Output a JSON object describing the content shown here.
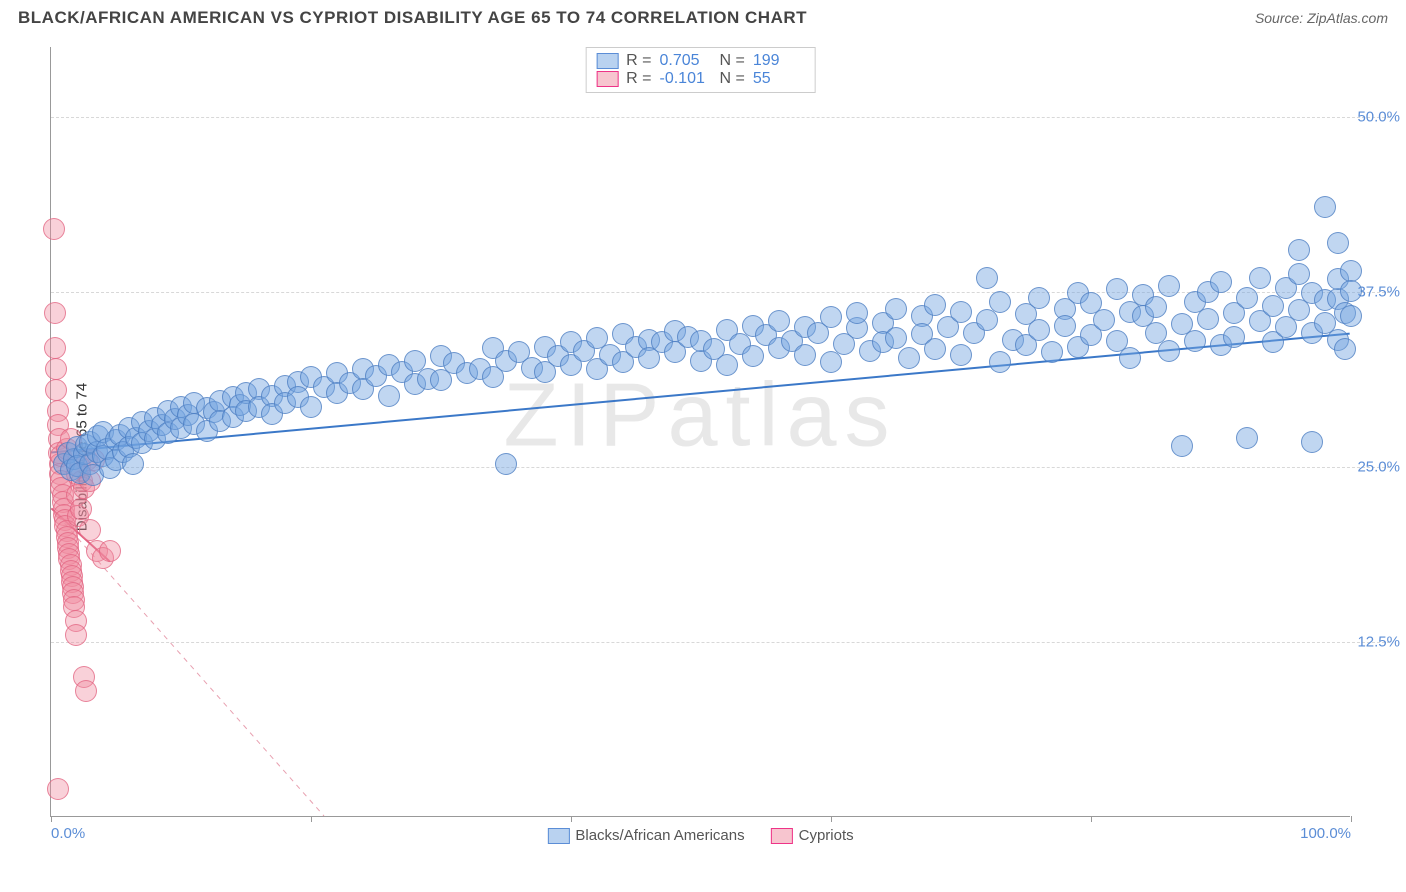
{
  "title": "BLACK/AFRICAN AMERICAN VS CYPRIOT DISABILITY AGE 65 TO 74 CORRELATION CHART",
  "source": "Source: ZipAtlas.com",
  "watermark": "ZIPatlas",
  "ylabel": "Disability Age 65 to 74",
  "chart": {
    "type": "scatter",
    "background_color": "#ffffff",
    "grid_color": "#d8d8d8",
    "axis_color": "#999999",
    "xlim": [
      0,
      100
    ],
    "ylim": [
      0,
      55
    ],
    "yticks": [
      {
        "value": 12.5,
        "label": "12.5%"
      },
      {
        "value": 25.0,
        "label": "25.0%"
      },
      {
        "value": 37.5,
        "label": "37.5%"
      },
      {
        "value": 50.0,
        "label": "50.0%"
      }
    ],
    "xticks": [
      0,
      20,
      40,
      60,
      80,
      100
    ],
    "xlabels": [
      {
        "value": 0,
        "label": "0.0%"
      },
      {
        "value": 100,
        "label": "100.0%"
      }
    ],
    "point_radius": 11,
    "series": {
      "blue": {
        "label": "Blacks/African Americans",
        "color_fill": "rgba(115,165,225,0.45)",
        "color_stroke": "#5b8dd6",
        "R": "0.705",
        "N": "199",
        "trend": {
          "x1": 0,
          "y1": 26,
          "x2": 100,
          "y2": 34.5,
          "dashed": false,
          "color": "#3b78c8",
          "width": 2
        },
        "points": [
          [
            1,
            25.2
          ],
          [
            1.3,
            26
          ],
          [
            1.5,
            24.8
          ],
          [
            1.8,
            25.6
          ],
          [
            2,
            26.4
          ],
          [
            2,
            25.1
          ],
          [
            2.2,
            24.6
          ],
          [
            2.5,
            25.9
          ],
          [
            2.7,
            26.6
          ],
          [
            3,
            25.2
          ],
          [
            3,
            26.8
          ],
          [
            3.2,
            24.4
          ],
          [
            3.5,
            26.1
          ],
          [
            3.6,
            27.2
          ],
          [
            4,
            25.8
          ],
          [
            4,
            27.5
          ],
          [
            4.3,
            26.3
          ],
          [
            4.5,
            24.9
          ],
          [
            5,
            26.9
          ],
          [
            5,
            25.5
          ],
          [
            5.3,
            27.3
          ],
          [
            5.5,
            26.1
          ],
          [
            6,
            27.8
          ],
          [
            6,
            26.4
          ],
          [
            6.3,
            25.2
          ],
          [
            6.5,
            27.1
          ],
          [
            7,
            28.2
          ],
          [
            7,
            26.7
          ],
          [
            7.5,
            27.6
          ],
          [
            8,
            28.5
          ],
          [
            8,
            27.0
          ],
          [
            8.5,
            28.0
          ],
          [
            9,
            29.0
          ],
          [
            9,
            27.4
          ],
          [
            9.5,
            28.4
          ],
          [
            10,
            29.3
          ],
          [
            10,
            27.8
          ],
          [
            10.5,
            28.7
          ],
          [
            11,
            29.6
          ],
          [
            11,
            28.1
          ],
          [
            12,
            29.2
          ],
          [
            12,
            27.6
          ],
          [
            12.5,
            28.9
          ],
          [
            13,
            29.7
          ],
          [
            13,
            28.3
          ],
          [
            14,
            30.0
          ],
          [
            14,
            28.6
          ],
          [
            14.5,
            29.4
          ],
          [
            15,
            30.3
          ],
          [
            15,
            29.0
          ],
          [
            16,
            30.6
          ],
          [
            16,
            29.3
          ],
          [
            17,
            30.1
          ],
          [
            17,
            28.8
          ],
          [
            18,
            30.8
          ],
          [
            18,
            29.6
          ],
          [
            19,
            31.1
          ],
          [
            19,
            30.0
          ],
          [
            20,
            31.4
          ],
          [
            20,
            29.3
          ],
          [
            21,
            30.7
          ],
          [
            22,
            31.7
          ],
          [
            22,
            30.3
          ],
          [
            23,
            31.0
          ],
          [
            24,
            32.0
          ],
          [
            24,
            30.6
          ],
          [
            25,
            31.5
          ],
          [
            26,
            32.3
          ],
          [
            26,
            30.1
          ],
          [
            27,
            31.8
          ],
          [
            28,
            32.6
          ],
          [
            28,
            30.9
          ],
          [
            29,
            31.3
          ],
          [
            30,
            32.9
          ],
          [
            30,
            31.2
          ],
          [
            31,
            32.4
          ],
          [
            32,
            31.7
          ],
          [
            33,
            32.0
          ],
          [
            34,
            33.5
          ],
          [
            34,
            31.4
          ],
          [
            35,
            32.6
          ],
          [
            35,
            25.2
          ],
          [
            36,
            33.2
          ],
          [
            37,
            32.1
          ],
          [
            38,
            33.6
          ],
          [
            38,
            31.8
          ],
          [
            39,
            32.9
          ],
          [
            40,
            33.9
          ],
          [
            40,
            32.3
          ],
          [
            41,
            33.3
          ],
          [
            42,
            34.2
          ],
          [
            42,
            32.0
          ],
          [
            43,
            33.0
          ],
          [
            44,
            34.5
          ],
          [
            44,
            32.5
          ],
          [
            45,
            33.6
          ],
          [
            46,
            34.1
          ],
          [
            46,
            32.8
          ],
          [
            47,
            33.9
          ],
          [
            48,
            34.7
          ],
          [
            48,
            33.2
          ],
          [
            49,
            34.3
          ],
          [
            50,
            32.6
          ],
          [
            50,
            34.0
          ],
          [
            51,
            33.4
          ],
          [
            52,
            34.8
          ],
          [
            52,
            32.3
          ],
          [
            53,
            33.8
          ],
          [
            54,
            35.1
          ],
          [
            54,
            32.9
          ],
          [
            55,
            34.4
          ],
          [
            56,
            33.5
          ],
          [
            56,
            35.4
          ],
          [
            57,
            34.0
          ],
          [
            58,
            33.0
          ],
          [
            58,
            35.0
          ],
          [
            59,
            34.6
          ],
          [
            60,
            32.5
          ],
          [
            60,
            35.7
          ],
          [
            61,
            33.8
          ],
          [
            62,
            34.9
          ],
          [
            62,
            36.0
          ],
          [
            63,
            33.3
          ],
          [
            64,
            35.3
          ],
          [
            64,
            33.9
          ],
          [
            65,
            36.3
          ],
          [
            65,
            34.2
          ],
          [
            66,
            32.8
          ],
          [
            67,
            35.8
          ],
          [
            67,
            34.5
          ],
          [
            68,
            33.4
          ],
          [
            68,
            36.6
          ],
          [
            69,
            35.0
          ],
          [
            70,
            33.0
          ],
          [
            70,
            36.1
          ],
          [
            71,
            34.6
          ],
          [
            72,
            38.5
          ],
          [
            72,
            35.5
          ],
          [
            73,
            32.5
          ],
          [
            73,
            36.8
          ],
          [
            74,
            34.1
          ],
          [
            75,
            35.9
          ],
          [
            75,
            33.7
          ],
          [
            76,
            37.1
          ],
          [
            76,
            34.8
          ],
          [
            77,
            33.2
          ],
          [
            78,
            36.3
          ],
          [
            78,
            35.1
          ],
          [
            79,
            37.4
          ],
          [
            79,
            33.6
          ],
          [
            80,
            34.4
          ],
          [
            80,
            36.7
          ],
          [
            81,
            35.5
          ],
          [
            82,
            37.7
          ],
          [
            82,
            34.0
          ],
          [
            83,
            36.1
          ],
          [
            83,
            32.8
          ],
          [
            84,
            35.8
          ],
          [
            84,
            37.3
          ],
          [
            85,
            34.6
          ],
          [
            85,
            36.4
          ],
          [
            86,
            33.3
          ],
          [
            86,
            37.9
          ],
          [
            87,
            35.2
          ],
          [
            87,
            26.5
          ],
          [
            88,
            36.8
          ],
          [
            88,
            34.0
          ],
          [
            89,
            37.5
          ],
          [
            89,
            35.6
          ],
          [
            90,
            33.7
          ],
          [
            90,
            38.2
          ],
          [
            91,
            36.0
          ],
          [
            91,
            34.3
          ],
          [
            92,
            37.1
          ],
          [
            92,
            27.1
          ],
          [
            93,
            35.4
          ],
          [
            93,
            38.5
          ],
          [
            94,
            36.5
          ],
          [
            94,
            33.9
          ],
          [
            95,
            37.8
          ],
          [
            95,
            35.0
          ],
          [
            96,
            38.8
          ],
          [
            96,
            36.2
          ],
          [
            96,
            40.5
          ],
          [
            97,
            34.6
          ],
          [
            97,
            37.4
          ],
          [
            97,
            26.8
          ],
          [
            98,
            43.6
          ],
          [
            98,
            36.9
          ],
          [
            98,
            35.3
          ],
          [
            99,
            41.0
          ],
          [
            99,
            37.0
          ],
          [
            99,
            34.1
          ],
          [
            99,
            38.4
          ],
          [
            99.5,
            36.0
          ],
          [
            99.5,
            33.4
          ],
          [
            100,
            39.0
          ],
          [
            100,
            35.8
          ],
          [
            100,
            37.6
          ]
        ]
      },
      "pink": {
        "label": "Cypriots",
        "color_fill": "rgba(240,140,160,0.40)",
        "color_stroke": "#e06080",
        "R": "-0.101",
        "N": "55",
        "trend": {
          "x1": 0,
          "y1": 22,
          "x2": 21,
          "y2": 0,
          "dashed": true,
          "color": "#e8a0b0",
          "width": 1
        },
        "trend_solid": {
          "x1": 0,
          "y1": 22,
          "x2": 4.5,
          "y2": 18.2,
          "color": "#e06080",
          "width": 2
        },
        "points": [
          [
            0.2,
            42.0
          ],
          [
            0.3,
            36.0
          ],
          [
            0.3,
            33.5
          ],
          [
            0.4,
            32.0
          ],
          [
            0.4,
            30.5
          ],
          [
            0.5,
            29.0
          ],
          [
            0.5,
            28.0
          ],
          [
            0.6,
            27.0
          ],
          [
            0.6,
            26.0
          ],
          [
            0.7,
            25.2
          ],
          [
            0.7,
            24.5
          ],
          [
            0.8,
            24.0
          ],
          [
            0.8,
            23.5
          ],
          [
            0.9,
            23.0
          ],
          [
            0.9,
            22.5
          ],
          [
            1.0,
            22.0
          ],
          [
            1.0,
            21.6
          ],
          [
            1.1,
            21.2
          ],
          [
            1.1,
            20.8
          ],
          [
            1.2,
            20.4
          ],
          [
            1.2,
            20.0
          ],
          [
            1.3,
            19.6
          ],
          [
            1.3,
            19.2
          ],
          [
            1.4,
            18.8
          ],
          [
            1.4,
            18.4
          ],
          [
            1.5,
            18.0
          ],
          [
            1.5,
            17.6
          ],
          [
            1.6,
            17.2
          ],
          [
            1.6,
            16.8
          ],
          [
            1.7,
            16.4
          ],
          [
            1.7,
            16.0
          ],
          [
            1.8,
            15.5
          ],
          [
            1.8,
            15.0
          ],
          [
            1.9,
            14.0
          ],
          [
            1.9,
            13.0
          ],
          [
            2.0,
            24.5
          ],
          [
            2.0,
            23.0
          ],
          [
            2.1,
            21.5
          ],
          [
            2.2,
            25.0
          ],
          [
            2.3,
            22.0
          ],
          [
            2.4,
            24.0
          ],
          [
            2.5,
            23.5
          ],
          [
            2.5,
            10.0
          ],
          [
            2.7,
            9.0
          ],
          [
            2.8,
            25.5
          ],
          [
            3.0,
            20.5
          ],
          [
            3.0,
            24.0
          ],
          [
            3.3,
            25.5
          ],
          [
            3.5,
            19.0
          ],
          [
            4.0,
            18.5
          ],
          [
            4.5,
            19.0
          ],
          [
            0.5,
            2.0
          ],
          [
            0.8,
            25.8
          ],
          [
            1.2,
            26.3
          ],
          [
            1.5,
            27.0
          ]
        ]
      }
    }
  }
}
